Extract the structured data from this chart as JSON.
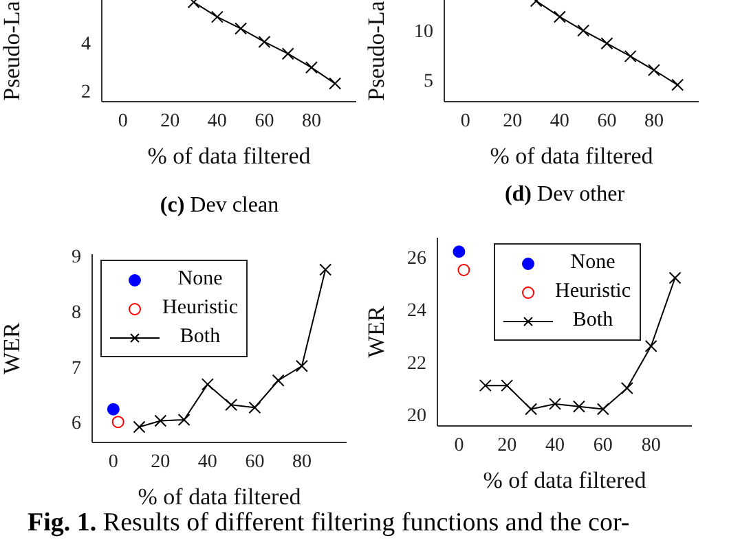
{
  "chart_data": [
    {
      "type": "line",
      "ylabel": "Pseudo-La",
      "xlabel": "% of data filtered",
      "xlim": [
        -9,
        99
      ],
      "xticks": [
        0,
        20,
        40,
        60,
        80
      ],
      "ylim": [
        1.55,
        5.75
      ],
      "yticks": [
        2,
        4
      ],
      "marker": "cross",
      "grid": false,
      "series": [
        {
          "color": "#000000",
          "x": [
            30,
            40,
            50,
            60,
            70,
            80,
            90
          ],
          "values": [
            5.66,
            5.05,
            4.57,
            4.02,
            3.53,
            2.96,
            2.3
          ]
        }
      ]
    },
    {
      "type": "line",
      "ylabel": "Pseudo-La",
      "xlabel": "% of data filtered",
      "xlim": [
        -9,
        99
      ],
      "xticks": [
        0,
        20,
        40,
        60,
        80
      ],
      "ylim": [
        2.8,
        13.1
      ],
      "yticks": [
        5,
        10
      ],
      "marker": "cross",
      "grid": false,
      "series": [
        {
          "color": "#000000",
          "x": [
            30,
            40,
            50,
            60,
            70,
            80,
            90
          ],
          "values": [
            13.0,
            11.4,
            10.0,
            8.7,
            7.4,
            6.0,
            4.5
          ]
        }
      ]
    },
    {
      "type": "line",
      "title": "(c) Dev clean",
      "ylabel": "WER",
      "xlabel": "% of data filtered",
      "xlim": [
        -9,
        99
      ],
      "xticks": [
        0,
        20,
        40,
        60,
        80
      ],
      "ylim": [
        5.63,
        9.03
      ],
      "yticks": [
        6,
        7,
        8,
        9
      ],
      "marker": "cross",
      "grid": false,
      "legend": "top left",
      "series": [
        {
          "name": "None",
          "type": "scatter",
          "marker": "circle",
          "color": "#0000ff",
          "x": [
            0
          ],
          "values": [
            6.23
          ]
        },
        {
          "name": "Heuristic",
          "type": "scatter",
          "marker": "open_circle",
          "color": "#ff0000",
          "x": [
            2
          ],
          "values": [
            6.0
          ]
        },
        {
          "name": "Both",
          "color": "#000000",
          "x": [
            11,
            20,
            30,
            40,
            50,
            60,
            70,
            80,
            90
          ],
          "values": [
            5.91,
            6.02,
            6.04,
            6.68,
            6.31,
            6.26,
            6.75,
            7.01,
            8.75
          ]
        }
      ]
    },
    {
      "type": "line",
      "title": "(d) Dev other",
      "ylabel": "WER",
      "xlabel": "% of data filtered",
      "xlim": [
        -9,
        97
      ],
      "xticks": [
        0,
        20,
        40,
        60,
        80
      ],
      "ylim": [
        19.56,
        26.73
      ],
      "yticks": [
        20,
        22,
        24,
        26
      ],
      "marker": "cross",
      "grid": false,
      "legend": "top",
      "annotations": [
        "Fig. 1. Results of different filtering functions and the cor-"
      ],
      "series": [
        {
          "name": "None",
          "type": "scatter",
          "marker": "circle",
          "color": "#0000ff",
          "x": [
            0
          ],
          "values": [
            26.2
          ]
        },
        {
          "name": "Heuristic",
          "type": "scatter",
          "marker": "open_circle",
          "color": "#ff0000",
          "x": [
            2
          ],
          "values": [
            25.5
          ]
        },
        {
          "name": "Both",
          "color": "#000000",
          "x": [
            11,
            20,
            30,
            40,
            50,
            60,
            70,
            80,
            90
          ],
          "values": [
            21.1,
            21.1,
            20.2,
            20.4,
            20.3,
            20.2,
            21.0,
            22.6,
            25.2
          ]
        }
      ]
    }
  ]
}
